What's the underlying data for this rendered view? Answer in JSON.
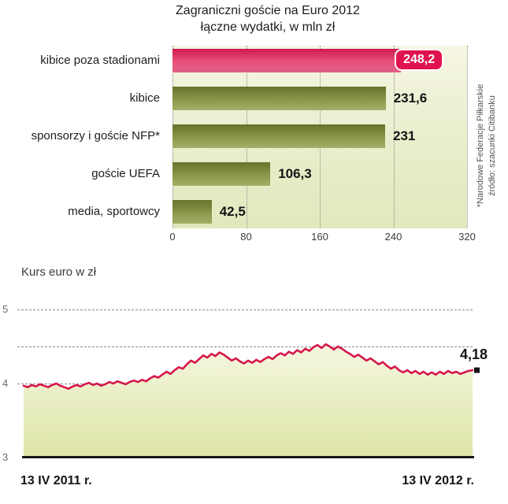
{
  "chart_data": [
    {
      "type": "bar",
      "orientation": "horizontal",
      "title": "Zagraniczni goście na Euro 2012",
      "subtitle": "łączne wydatki, w mln zł",
      "categories": [
        "kibice poza stadionami",
        "kibice",
        "sponsorzy i goście NFP*",
        "goście UEFA",
        "media, sportowcy"
      ],
      "values": [
        248.2,
        231.6,
        231,
        106.3,
        42.5
      ],
      "value_labels": [
        "248,2",
        "231,6",
        "231",
        "106,3",
        "42,5"
      ],
      "highlight_index": 0,
      "xlim": [
        0,
        320
      ],
      "x_ticks": [
        "0",
        "80",
        "160",
        "240",
        "320"
      ],
      "grid": "vertical-dotted",
      "source_note_line1": "*Narodowe Federacje Piłkarskie",
      "source_note_line2": "źródło: szacunki Citibanku",
      "colors": {
        "highlight_bar": "#e1134e",
        "bar": "#77853b",
        "plot_background": "#ecf0cd"
      }
    },
    {
      "type": "line",
      "title": "Kurs euro w zł",
      "ylim": [
        3,
        5
      ],
      "y_ticks": [
        5,
        4,
        3
      ],
      "dashed_grid_values": [
        5,
        4.5,
        4
      ],
      "x_start_label": "13 IV 2011 r.",
      "x_end_label": "13 IV 2012 r.",
      "end_label": "4,18",
      "end_value": 4.18,
      "line_color": "#d6174a",
      "area_top_color": "#f5f7e0",
      "area_bottom_color": "#dde4a6",
      "values": [
        3.97,
        3.95,
        3.98,
        3.96,
        3.99,
        3.97,
        3.95,
        3.98,
        4.0,
        3.97,
        3.95,
        3.93,
        3.96,
        3.98,
        3.96,
        3.99,
        4.01,
        3.98,
        4.0,
        3.97,
        3.99,
        4.02,
        4.0,
        4.03,
        4.01,
        3.99,
        4.02,
        4.04,
        4.02,
        4.05,
        4.03,
        4.07,
        4.1,
        4.08,
        4.12,
        4.16,
        4.13,
        4.18,
        4.22,
        4.2,
        4.26,
        4.31,
        4.28,
        4.33,
        4.38,
        4.35,
        4.4,
        4.37,
        4.42,
        4.39,
        4.35,
        4.31,
        4.34,
        4.3,
        4.27,
        4.31,
        4.28,
        4.32,
        4.29,
        4.33,
        4.36,
        4.33,
        4.38,
        4.41,
        4.38,
        4.43,
        4.4,
        4.45,
        4.42,
        4.47,
        4.44,
        4.49,
        4.52,
        4.48,
        4.53,
        4.5,
        4.46,
        4.5,
        4.47,
        4.43,
        4.4,
        4.36,
        4.39,
        4.35,
        4.31,
        4.34,
        4.3,
        4.26,
        4.29,
        4.24,
        4.2,
        4.23,
        4.18,
        4.15,
        4.18,
        4.14,
        4.17,
        4.13,
        4.16,
        4.12,
        4.15,
        4.12,
        4.16,
        4.13,
        4.17,
        4.14,
        4.16,
        4.13,
        4.15,
        4.17,
        4.18
      ]
    }
  ]
}
